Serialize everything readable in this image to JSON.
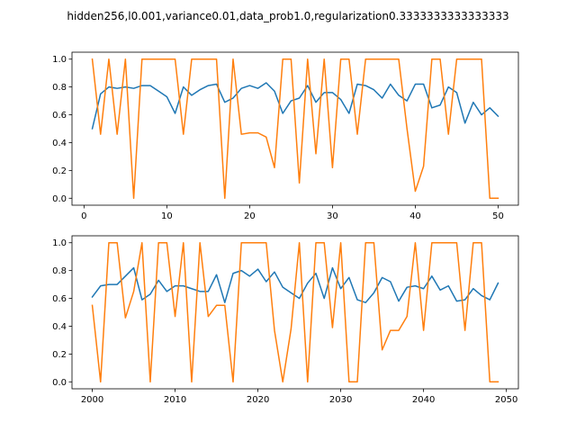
{
  "figure": {
    "title": "hidden256,l0.001,variance0.01,data_prob1.0,regularization0.3333333333333333"
  },
  "colors": {
    "series_a": "#1f77b4",
    "series_b": "#ff7f0e"
  },
  "chart_data": [
    {
      "type": "line",
      "xlim": [
        -1.45,
        52.45
      ],
      "ylim": [
        -0.05,
        1.05
      ],
      "xticks": [
        0,
        10,
        20,
        30,
        40,
        50
      ],
      "yticks": [
        0.0,
        0.2,
        0.4,
        0.6,
        0.8,
        1.0
      ],
      "xtick_labels": [
        "0",
        "10",
        "20",
        "30",
        "40",
        "50"
      ],
      "ytick_labels": [
        "0.0",
        "0.2",
        "0.4",
        "0.6",
        "0.8",
        "1.0"
      ],
      "x": [
        1,
        2,
        3,
        4,
        5,
        6,
        7,
        8,
        9,
        10,
        11,
        12,
        13,
        14,
        15,
        16,
        17,
        18,
        19,
        20,
        21,
        22,
        23,
        24,
        25,
        26,
        27,
        28,
        29,
        30,
        31,
        32,
        33,
        34,
        35,
        36,
        37,
        38,
        39,
        40,
        41,
        42,
        43,
        44,
        45,
        46,
        47,
        48,
        49,
        50
      ],
      "series": [
        {
          "color": "#1f77b4",
          "values": [
            0.5,
            0.75,
            0.8,
            0.79,
            0.8,
            0.79,
            0.81,
            0.81,
            0.77,
            0.73,
            0.61,
            0.8,
            0.74,
            0.78,
            0.81,
            0.82,
            0.69,
            0.72,
            0.79,
            0.81,
            0.79,
            0.83,
            0.77,
            0.61,
            0.7,
            0.72,
            0.81,
            0.69,
            0.76,
            0.76,
            0.71,
            0.61,
            0.82,
            0.81,
            0.78,
            0.72,
            0.82,
            0.74,
            0.7,
            0.82,
            0.82,
            0.65,
            0.67,
            0.8,
            0.76,
            0.54,
            0.69,
            0.6,
            0.65,
            0.59
          ]
        },
        {
          "color": "#ff7f0e",
          "values": [
            1.0,
            0.46,
            1.0,
            0.46,
            1.0,
            0.0,
            1.0,
            1.0,
            1.0,
            1.0,
            1.0,
            0.46,
            1.0,
            1.0,
            1.0,
            1.0,
            0.0,
            1.0,
            0.46,
            0.47,
            0.47,
            0.44,
            0.22,
            1.0,
            1.0,
            0.11,
            1.0,
            0.32,
            1.0,
            0.22,
            1.0,
            1.0,
            0.46,
            1.0,
            1.0,
            1.0,
            1.0,
            1.0,
            0.5,
            0.05,
            0.23,
            1.0,
            1.0,
            0.46,
            1.0,
            1.0,
            1.0,
            1.0,
            0.0,
            0.0
          ]
        }
      ]
    },
    {
      "type": "line",
      "xlim": [
        1997.55,
        2051.45
      ],
      "ylim": [
        -0.05,
        1.05
      ],
      "xticks": [
        2000,
        2010,
        2020,
        2030,
        2040,
        2050
      ],
      "yticks": [
        0.0,
        0.2,
        0.4,
        0.6,
        0.8,
        1.0
      ],
      "xtick_labels": [
        "2000",
        "2010",
        "2020",
        "2030",
        "2040",
        "2050"
      ],
      "ytick_labels": [
        "0.0",
        "0.2",
        "0.4",
        "0.6",
        "0.8",
        "1.0"
      ],
      "x": [
        2000,
        2001,
        2002,
        2003,
        2004,
        2005,
        2006,
        2007,
        2008,
        2009,
        2010,
        2011,
        2012,
        2013,
        2014,
        2015,
        2016,
        2017,
        2018,
        2019,
        2020,
        2021,
        2022,
        2023,
        2024,
        2025,
        2026,
        2027,
        2028,
        2029,
        2030,
        2031,
        2032,
        2033,
        2034,
        2035,
        2036,
        2037,
        2038,
        2039,
        2040,
        2041,
        2042,
        2043,
        2044,
        2045,
        2046,
        2047,
        2048,
        2049
      ],
      "series": [
        {
          "color": "#1f77b4",
          "values": [
            0.61,
            0.69,
            0.7,
            0.7,
            0.76,
            0.82,
            0.59,
            0.63,
            0.73,
            0.65,
            0.69,
            0.69,
            0.67,
            0.65,
            0.65,
            0.77,
            0.57,
            0.78,
            0.8,
            0.76,
            0.81,
            0.72,
            0.79,
            0.68,
            0.64,
            0.6,
            0.71,
            0.78,
            0.6,
            0.82,
            0.67,
            0.75,
            0.59,
            0.57,
            0.64,
            0.75,
            0.72,
            0.58,
            0.68,
            0.69,
            0.67,
            0.76,
            0.66,
            0.69,
            0.58,
            0.59,
            0.67,
            0.62,
            0.59,
            0.71
          ]
        },
        {
          "color": "#ff7f0e",
          "values": [
            0.55,
            0.0,
            1.0,
            1.0,
            0.46,
            0.65,
            1.0,
            0.0,
            1.0,
            1.0,
            0.47,
            1.0,
            0.0,
            1.0,
            0.47,
            0.55,
            0.55,
            0.0,
            1.0,
            1.0,
            1.0,
            1.0,
            0.37,
            0.0,
            0.38,
            1.0,
            0.0,
            1.0,
            1.0,
            0.39,
            1.0,
            0.0,
            0.0,
            1.0,
            1.0,
            0.23,
            0.37,
            0.37,
            0.47,
            1.0,
            0.37,
            1.0,
            1.0,
            1.0,
            1.0,
            0.37,
            1.0,
            1.0,
            0.0,
            0.0
          ]
        }
      ]
    }
  ]
}
